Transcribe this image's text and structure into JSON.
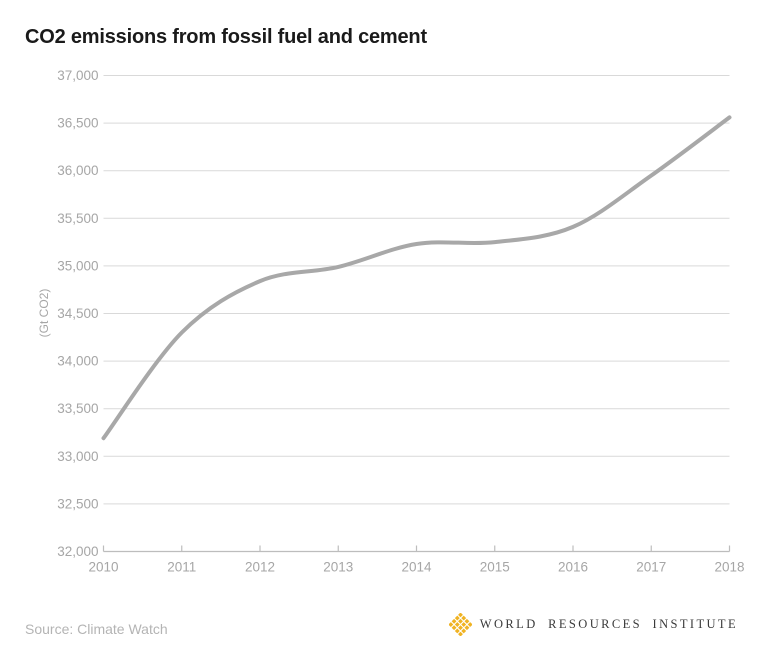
{
  "header": {
    "title": "CO2 emissions from fossil fuel and cement"
  },
  "footer": {
    "source": "Source: Climate Watch",
    "wri": {
      "name": "WORLD RESOURCES INSTITUTE",
      "icon": "wri-lattice-icon",
      "icon_color": "#F0B323",
      "text_color": "#3a3a3a"
    }
  },
  "chart_data": {
    "type": "line",
    "title": "CO2 emissions from fossil fuel and cement",
    "xlabel": "",
    "ylabel": "(Gt CO2)",
    "x": [
      2010,
      2011,
      2012,
      2013,
      2014,
      2015,
      2016,
      2017,
      2018
    ],
    "series": [
      {
        "name": "CO2 emissions from fossil fuel and cement",
        "values": [
          33190,
          34300,
          34840,
          34990,
          35230,
          35250,
          35410,
          35950,
          36560
        ],
        "color": "#a8a8a8",
        "stroke_width": 4,
        "smooth": true
      }
    ],
    "ylim": [
      32000,
      37000
    ],
    "ytick_step": 500,
    "grid": true,
    "legend_position": "none",
    "grid_color": "#d9d9d9",
    "axis_color": "#bdbdbd",
    "tick_label_color": "#a6a6a6"
  }
}
